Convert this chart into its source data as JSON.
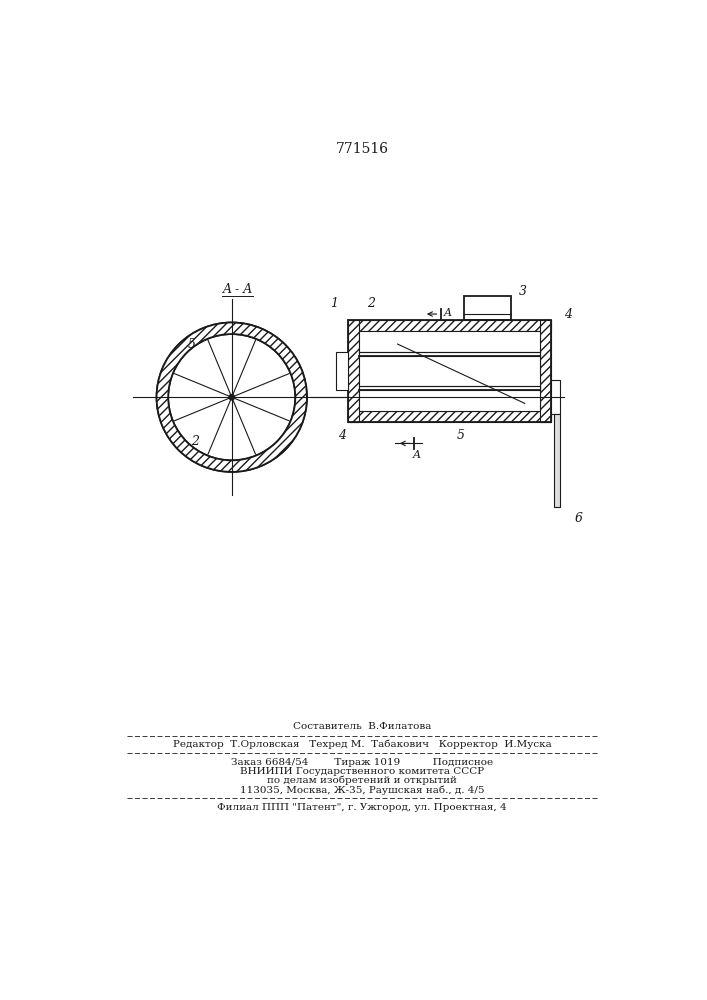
{
  "title_number": "771516",
  "bg_color": "#ffffff",
  "line_color": "#1a1a1a",
  "labels": {
    "AA": "A - A",
    "label1": "1",
    "label2": "2",
    "label3": "3",
    "label4_tr": "4",
    "label4_bl": "4",
    "label5_circ": "5",
    "label5_box": "5",
    "label6": "6",
    "labelA_top": "A",
    "labelA_bot": "A"
  },
  "footer_lines": [
    "Составитель  В.Филатова",
    "Редактор  Т.Орловская   Техред М.  Табакович   Корректор  И.Муска",
    "Заказ 6684/54        Тираж 1019          Подписное",
    "ВНИИПИ Государственного комитета СССР",
    "по делам изобретений и открытий",
    "113035, Москва, Ж-35, Раушская наб., д. 4/5",
    "Филиал ППП \"Патент\", г. Ужгород, ул. Проектная, 4"
  ]
}
